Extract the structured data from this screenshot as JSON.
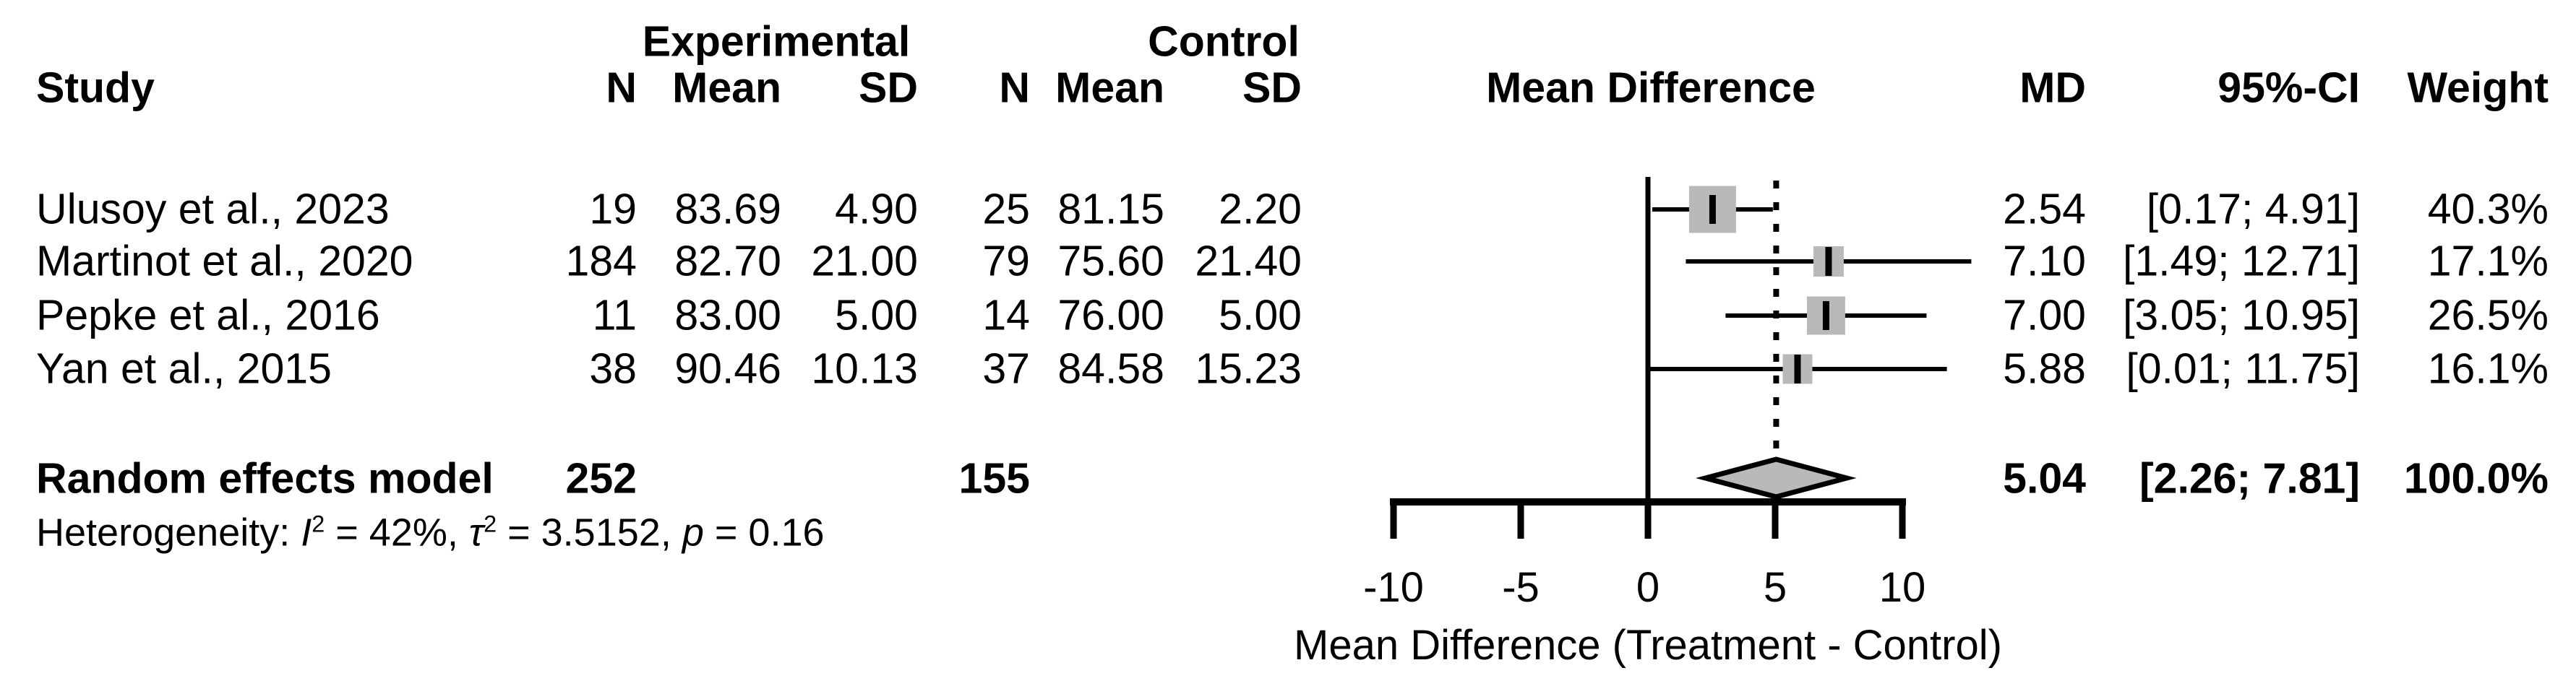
{
  "header": {
    "group_experimental": "Experimental",
    "group_control": "Control",
    "study": "Study",
    "n": "N",
    "mean": "Mean",
    "sd": "SD",
    "mean_difference": "Mean Difference",
    "md": "MD",
    "ci": "95%-CI",
    "weight": "Weight"
  },
  "chart_data": {
    "type": "forest",
    "effect_measure": "Mean Difference",
    "x_axis": {
      "label": "Mean Difference (Treatment - Control)",
      "ticks": [
        -10,
        -5,
        0,
        5,
        10
      ],
      "tick_labels": [
        "-10",
        "-5",
        "0",
        "5",
        "10"
      ],
      "range": [
        -10,
        10
      ],
      "reference_line": 0,
      "pooled_line": 5.04
    },
    "studies": [
      {
        "name": "Ulusoy et al., 2023",
        "exp": {
          "n": "19",
          "mean": "83.69",
          "sd": "4.90"
        },
        "ctrl": {
          "n": "25",
          "mean": "81.15",
          "sd": "2.20"
        },
        "md": 2.54,
        "ci_lower": 0.17,
        "ci_upper": 4.91,
        "md_text": "2.54",
        "ci_text": "[0.17; 4.91]",
        "weight": 40.3,
        "weight_text": "40.3%"
      },
      {
        "name": "Martinot et al., 2020",
        "exp": {
          "n": "184",
          "mean": "82.70",
          "sd": "21.00"
        },
        "ctrl": {
          "n": "79",
          "mean": "75.60",
          "sd": "21.40"
        },
        "md": 7.1,
        "ci_lower": 1.49,
        "ci_upper": 12.71,
        "md_text": "7.10",
        "ci_text": "[1.49; 12.71]",
        "weight": 17.1,
        "weight_text": "17.1%"
      },
      {
        "name": "Pepke et al., 2016",
        "exp": {
          "n": "11",
          "mean": "83.00",
          "sd": "5.00"
        },
        "ctrl": {
          "n": "14",
          "mean": "76.00",
          "sd": "5.00"
        },
        "md": 7.0,
        "ci_lower": 3.05,
        "ci_upper": 10.95,
        "md_text": "7.00",
        "ci_text": "[3.05; 10.95]",
        "weight": 26.5,
        "weight_text": "26.5%"
      },
      {
        "name": "Yan et al., 2015",
        "exp": {
          "n": "38",
          "mean": "90.46",
          "sd": "10.13"
        },
        "ctrl": {
          "n": "37",
          "mean": "84.58",
          "sd": "15.23"
        },
        "md": 5.88,
        "ci_lower": 0.01,
        "ci_upper": 11.75,
        "md_text": "5.88",
        "ci_text": "[0.01; 11.75]",
        "weight": 16.1,
        "weight_text": "16.1%"
      }
    ],
    "summary": {
      "label": "Random effects model",
      "exp_n": "252",
      "ctrl_n": "155",
      "md": 5.04,
      "ci_lower": 2.26,
      "ci_upper": 7.81,
      "md_text": "5.04",
      "ci_text": "[2.26; 7.81]",
      "weight_text": "100.0%"
    },
    "heterogeneity": {
      "full_text": "Heterogeneity: I² = 42%, τ² = 3.5152, p = 0.16",
      "segments": [
        {
          "t": "Heterogeneity: ",
          "s": "plain"
        },
        {
          "t": "I",
          "s": "italic"
        },
        {
          "t": "2",
          "s": "sup"
        },
        {
          "t": " = 42%, ",
          "s": "plain"
        },
        {
          "t": "τ",
          "s": "italic"
        },
        {
          "t": "2",
          "s": "sup"
        },
        {
          "t": " = 3.5152, ",
          "s": "plain"
        },
        {
          "t": "p",
          "s": "italic"
        },
        {
          "t": " = 0.16",
          "s": "plain"
        }
      ]
    }
  },
  "colors": {
    "square_fill": "#b9b9b9",
    "diamond_fill": "#b9b9b9",
    "line": "#000000",
    "text": "#000000",
    "background": "#ffffff"
  }
}
